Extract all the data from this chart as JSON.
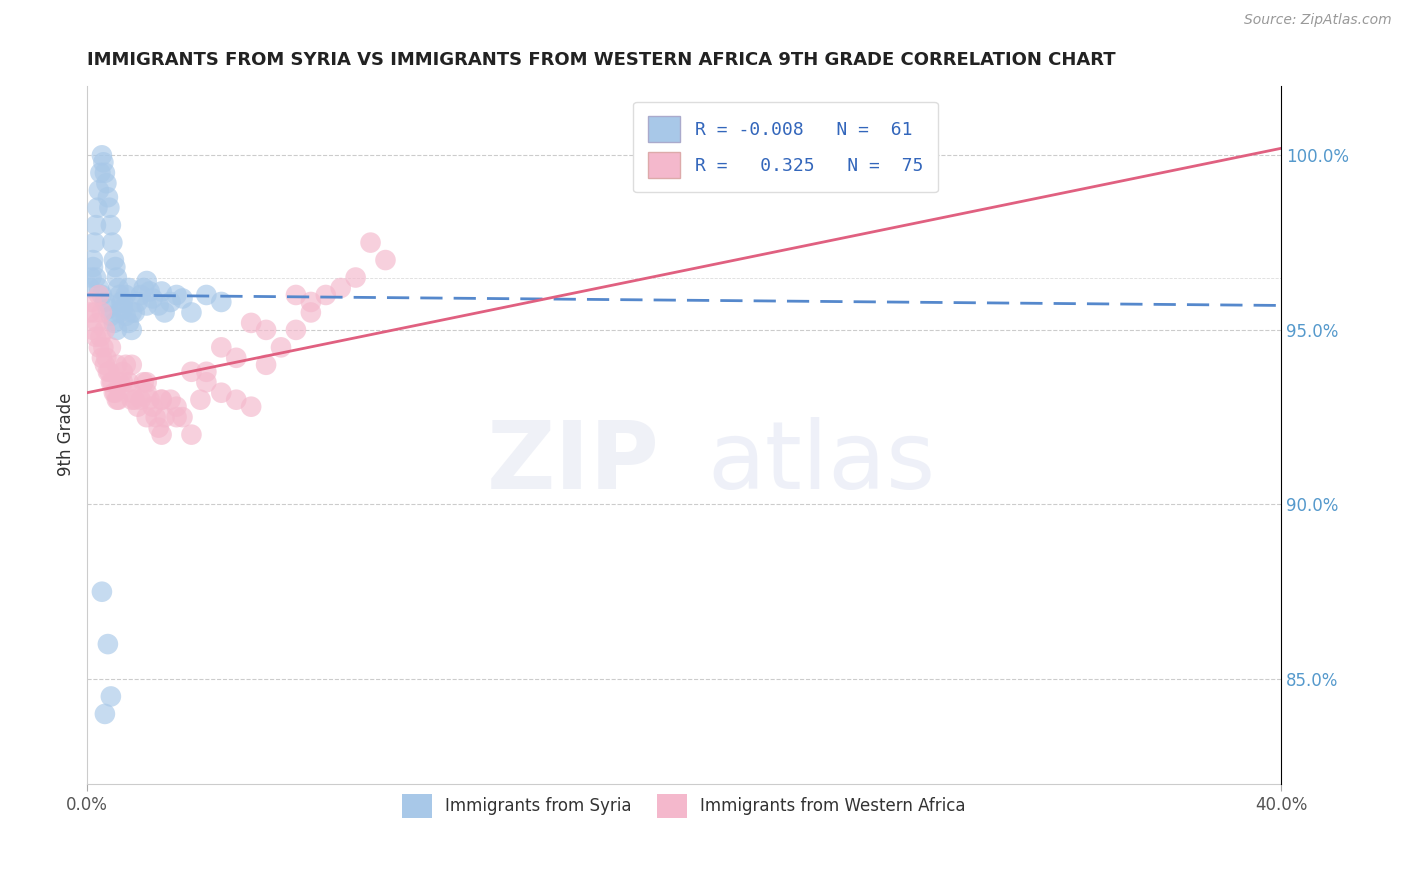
{
  "title": "IMMIGRANTS FROM SYRIA VS IMMIGRANTS FROM WESTERN AFRICA 9TH GRADE CORRELATION CHART",
  "source": "Source: ZipAtlas.com",
  "ylabel": "9th Grade",
  "xlim": [
    0.0,
    40.0
  ],
  "ylim": [
    82.0,
    102.0
  ],
  "yticks": [
    85.0,
    90.0,
    95.0,
    100.0
  ],
  "ytick_labels": [
    "85.0%",
    "90.0%",
    "95.0%",
    "100.0%"
  ],
  "blue_color": "#a8c8e8",
  "pink_color": "#f4b8cc",
  "blue_line_color": "#5588cc",
  "pink_line_color": "#e06080",
  "blue_r": -0.008,
  "blue_n": 61,
  "pink_r": 0.325,
  "pink_n": 75,
  "syria_x": [
    0.1,
    0.15,
    0.2,
    0.25,
    0.3,
    0.35,
    0.4,
    0.45,
    0.5,
    0.55,
    0.6,
    0.65,
    0.7,
    0.75,
    0.8,
    0.85,
    0.9,
    0.95,
    1.0,
    1.05,
    1.1,
    1.15,
    1.2,
    1.3,
    1.4,
    1.5,
    1.6,
    1.7,
    1.8,
    1.9,
    2.0,
    2.1,
    2.2,
    2.4,
    2.6,
    2.8,
    3.0,
    3.5,
    4.0,
    4.5,
    0.2,
    0.3,
    0.4,
    0.5,
    0.6,
    0.7,
    0.8,
    0.9,
    1.0,
    1.1,
    1.2,
    1.3,
    1.4,
    2.5,
    3.2,
    2.0,
    0.5,
    0.7,
    0.8,
    0.6,
    1.5
  ],
  "syria_y": [
    96.2,
    96.5,
    97.0,
    97.5,
    98.0,
    98.5,
    99.0,
    99.5,
    100.0,
    99.8,
    99.5,
    99.2,
    98.8,
    98.5,
    98.0,
    97.5,
    97.0,
    96.8,
    96.5,
    96.2,
    96.0,
    95.8,
    95.6,
    95.4,
    95.2,
    95.0,
    95.5,
    95.8,
    96.0,
    96.2,
    96.4,
    96.1,
    95.9,
    95.7,
    95.5,
    95.8,
    96.0,
    95.5,
    96.0,
    95.8,
    96.8,
    96.5,
    96.2,
    96.0,
    95.8,
    95.6,
    95.4,
    95.2,
    95.0,
    95.5,
    95.8,
    96.0,
    96.2,
    96.1,
    95.9,
    95.7,
    87.5,
    86.0,
    84.5,
    84.0,
    95.5
  ],
  "africa_x": [
    0.1,
    0.2,
    0.3,
    0.4,
    0.5,
    0.6,
    0.7,
    0.8,
    0.9,
    1.0,
    1.1,
    1.2,
    1.3,
    1.4,
    1.5,
    1.6,
    1.7,
    1.8,
    1.9,
    2.0,
    2.1,
    2.2,
    2.3,
    2.4,
    2.5,
    2.6,
    2.8,
    3.0,
    3.2,
    3.5,
    3.8,
    4.0,
    4.5,
    5.0,
    5.5,
    6.0,
    6.5,
    7.0,
    7.5,
    8.0,
    0.15,
    0.25,
    0.35,
    0.45,
    0.55,
    0.65,
    0.75,
    0.85,
    0.95,
    1.05,
    1.5,
    2.0,
    2.5,
    3.0,
    4.0,
    5.0,
    6.0,
    7.5,
    9.0,
    10.0,
    8.5,
    0.4,
    0.5,
    0.6,
    0.8,
    1.0,
    1.2,
    1.5,
    2.0,
    2.5,
    3.5,
    4.5,
    5.5,
    7.0,
    9.5
  ],
  "africa_y": [
    95.5,
    95.0,
    94.8,
    94.5,
    94.2,
    94.0,
    93.8,
    93.5,
    93.2,
    93.0,
    93.5,
    93.8,
    94.0,
    93.5,
    93.2,
    93.0,
    92.8,
    93.0,
    93.5,
    93.2,
    93.0,
    92.8,
    92.5,
    92.2,
    92.0,
    92.5,
    93.0,
    92.8,
    92.5,
    92.0,
    93.0,
    93.5,
    93.2,
    93.0,
    92.8,
    94.0,
    94.5,
    95.0,
    95.5,
    96.0,
    95.8,
    95.5,
    95.2,
    94.8,
    94.5,
    94.2,
    93.8,
    93.5,
    93.2,
    93.0,
    94.0,
    93.5,
    93.0,
    92.5,
    93.8,
    94.2,
    95.0,
    95.8,
    96.5,
    97.0,
    96.2,
    96.0,
    95.5,
    95.0,
    94.5,
    94.0,
    93.5,
    93.0,
    92.5,
    93.0,
    93.8,
    94.5,
    95.2,
    96.0,
    97.5
  ]
}
